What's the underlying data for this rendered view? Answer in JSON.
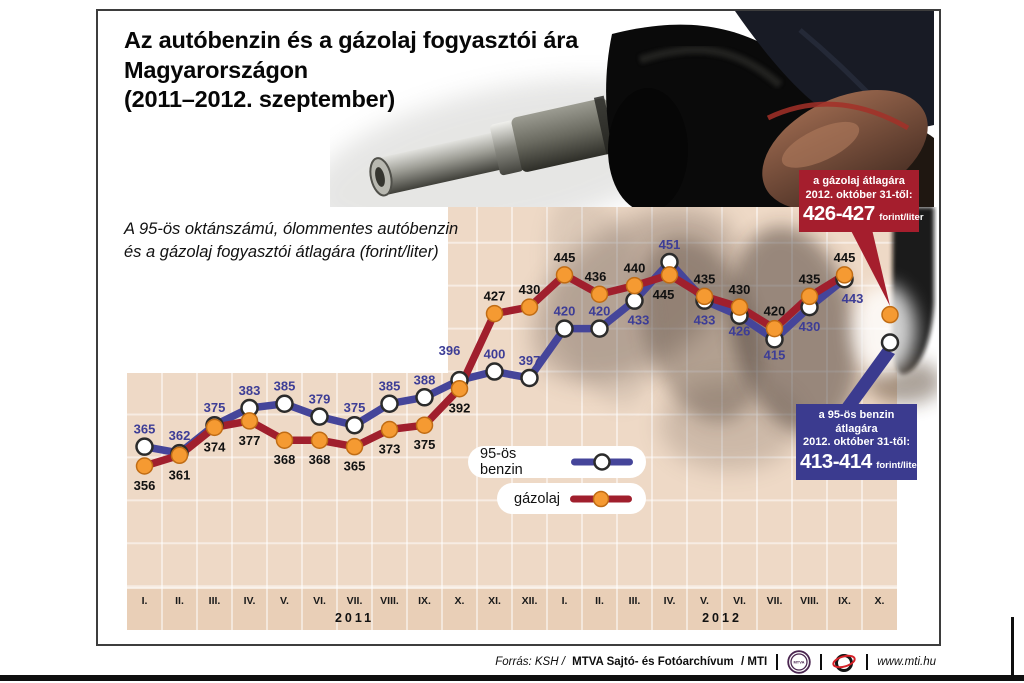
{
  "title": {
    "line1": "Az autóbenzin és a gázolaj fogyasztói ára",
    "line2": "Magyarországon",
    "line3": "(2011–2012. szeptember)"
  },
  "subtitle": {
    "line1": "A 95-ös oktánszámú, ólommentes autóbenzin",
    "line2": "és a gázolaj fogyasztói átlagára (forint/liter)"
  },
  "legend": {
    "benzin": "95-ös benzin",
    "diesel": "gázolaj"
  },
  "callouts": {
    "diesel": {
      "line1": "a gázolaj átlagára",
      "line2": "2012. október 31-től:",
      "value": "426-427",
      "unit": "forint/liter",
      "bg": "#a51e2d"
    },
    "benzin": {
      "line1": "a 95-ös benzin átlagára",
      "line2": "2012. október 31-től:",
      "value": "413-414",
      "unit": "forint/liter",
      "bg": "#3b3b8f"
    }
  },
  "footer": {
    "source_prefix": "Forrás: KSH /",
    "source_bold": "MTVA Sajtó- és Fotóarchívum",
    "source_suffix": "/ MTI",
    "mtva_logo_text": "MTVA",
    "url": "www.mti.hu"
  },
  "colors": {
    "plot_bg": "#eed9c6",
    "axis_strip_bg": "#e9cfb7",
    "gridline": "#ffffff"
  },
  "chart_data": {
    "type": "line",
    "title": "Az autóbenzin és a gázolaj fogyasztói ára Magyarországon (2011–2012. szeptember)",
    "ylabel": "forint/liter",
    "grid": true,
    "legend_position": "inside-bottom-left",
    "categories": [
      "I.",
      "II.",
      "III.",
      "IV.",
      "V.",
      "VI.",
      "VII.",
      "VIII.",
      "IX.",
      "X.",
      "XI.",
      "XII.",
      "I.",
      "II.",
      "III.",
      "IV.",
      "V.",
      "VI.",
      "VII.",
      "VIII.",
      "IX.",
      "X."
    ],
    "year_groups": [
      {
        "label": "2011",
        "months": 12
      },
      {
        "label": "2012",
        "months": 10
      }
    ],
    "note": "Last column (X. 2012) shows announced prices for 31 October 2012, marked by callouts instead of data labels",
    "series": [
      {
        "name": "95-ös benzin",
        "color": "#45459a",
        "label_color": "#3d3d96",
        "marker_fill": "#ffffff",
        "marker_stroke": "#2b2b2b",
        "values": [
          365,
          362,
          375,
          383,
          385,
          379,
          375,
          385,
          388,
          396,
          400,
          397,
          420,
          420,
          433,
          451,
          433,
          426,
          415,
          430,
          443,
          413.5
        ],
        "label_pos": [
          "a",
          "a",
          "a",
          "a",
          "a",
          "a",
          "a",
          "a",
          "a",
          "a",
          "a",
          "a",
          "a",
          "a",
          "b",
          "a",
          "b",
          "b",
          "b",
          "b",
          "b",
          ""
        ],
        "label_dx": [
          0,
          0,
          0,
          0,
          0,
          0,
          0,
          0,
          0,
          -10,
          0,
          0,
          0,
          0,
          4,
          0,
          0,
          0,
          0,
          0,
          8,
          0
        ],
        "label_dy": [
          0,
          0,
          0,
          0,
          0,
          0,
          0,
          0,
          0,
          -12,
          0,
          0,
          0,
          0,
          0,
          0,
          0,
          -4,
          -4,
          0,
          0,
          0
        ]
      },
      {
        "name": "gázolaj",
        "color": "#a01f2d",
        "label_color": "#111111",
        "marker_fill": "#f59a32",
        "marker_stroke": "#c06c14",
        "values": [
          356,
          361,
          374,
          377,
          368,
          368,
          365,
          373,
          375,
          392,
          427,
          430,
          445,
          436,
          440,
          445,
          435,
          430,
          420,
          435,
          445,
          426.5
        ],
        "label_pos": [
          "b",
          "b",
          "b",
          "b",
          "b",
          "b",
          "b",
          "b",
          "b",
          "b",
          "a",
          "a",
          "a",
          "a",
          "a",
          "b",
          "a",
          "a",
          "a",
          "a",
          "a",
          ""
        ],
        "label_dx": [
          0,
          0,
          0,
          0,
          0,
          0,
          0,
          0,
          0,
          0,
          0,
          0,
          0,
          -4,
          0,
          -6,
          0,
          0,
          0,
          0,
          0,
          0
        ],
        "label_dy": [
          0,
          0,
          0,
          0,
          0,
          0,
          0,
          0,
          0,
          0,
          0,
          0,
          0,
          0,
          0,
          0,
          0,
          0,
          0,
          0,
          0,
          0
        ]
      }
    ]
  }
}
